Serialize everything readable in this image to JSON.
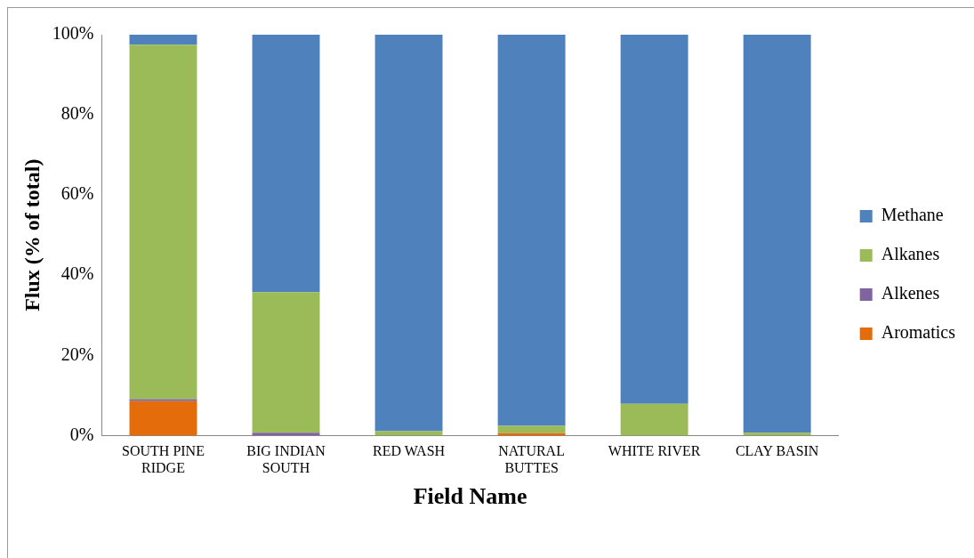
{
  "chart_data": {
    "type": "bar",
    "stacked": true,
    "xlabel": "Field Name",
    "ylabel": "Flux (% of total)",
    "categories": [
      "SOUTH PINE RIDGE",
      "BIG INDIAN SOUTH",
      "RED WASH",
      "NATURAL BUTTES",
      "WHITE RIVER",
      "CLAY BASIN"
    ],
    "series": [
      {
        "name": "Aromatics",
        "color": "#e46c0a",
        "values": [
          8.6,
          0,
          0,
          0.6,
          0,
          0
        ]
      },
      {
        "name": "Alkenes",
        "color": "#8064a2",
        "values": [
          0.5,
          0.7,
          0,
          0,
          0,
          0
        ]
      },
      {
        "name": "Alkanes",
        "color": "#9bbb59",
        "values": [
          88.4,
          35.1,
          1.1,
          1.8,
          7.9,
          0.7
        ]
      },
      {
        "name": "Methane",
        "color": "#4f81bd",
        "values": [
          2.5,
          64.2,
          98.9,
          97.6,
          92.1,
          99.3
        ]
      }
    ],
    "ylim": [
      0,
      100
    ],
    "yticks": [
      {
        "value": 0,
        "label": "0%"
      },
      {
        "value": 20,
        "label": "20%"
      },
      {
        "value": 40,
        "label": "40%"
      },
      {
        "value": 60,
        "label": "60%"
      },
      {
        "value": 80,
        "label": "80%"
      },
      {
        "value": 100,
        "label": "100%"
      }
    ],
    "grid": false,
    "legend": "right"
  }
}
